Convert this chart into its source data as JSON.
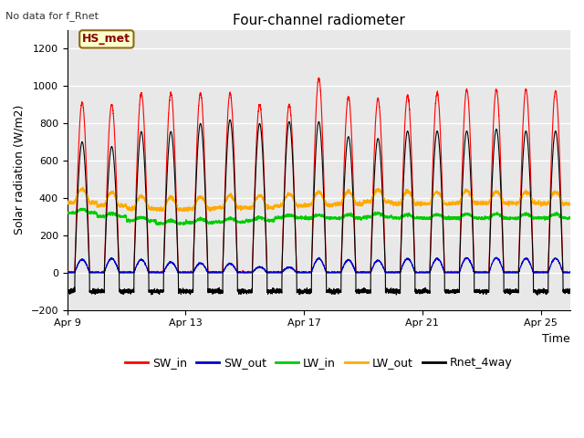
{
  "title": "Four-channel radiometer",
  "top_left_text": "No data for f_Rnet",
  "ylabel": "Solar radiation (W/m2)",
  "xlabel": "Time",
  "annotation_box": "HS_met",
  "ylim": [
    -200,
    1300
  ],
  "yticks": [
    -200,
    0,
    200,
    400,
    600,
    800,
    1000,
    1200
  ],
  "xtick_labels": [
    "Apr 9",
    "Apr 13",
    "Apr 17",
    "Apr 21",
    "Apr 25"
  ],
  "xtick_positions": [
    0,
    4,
    8,
    12,
    16
  ],
  "legend_entries": [
    "SW_in",
    "SW_out",
    "LW_in",
    "LW_out",
    "Rnet_4way"
  ],
  "legend_colors": [
    "#ff0000",
    "#0000cc",
    "#00cc00",
    "#ffaa00",
    "#000000"
  ],
  "fig_facecolor": "#ffffff",
  "plot_facecolor": "#e8e8e8",
  "grid_color": "#ffffff",
  "title_fontsize": 11,
  "tick_fontsize": 8,
  "label_fontsize": 9,
  "legend_fontsize": 9,
  "n_days": 17,
  "xlim": [
    0,
    17
  ],
  "SW_in_peak": [
    910,
    900,
    960,
    960,
    960,
    960,
    900,
    900,
    1040,
    940,
    930,
    950,
    960,
    980,
    980,
    980,
    970
  ],
  "SW_out_peak": [
    70,
    75,
    70,
    55,
    50,
    48,
    30,
    28,
    75,
    68,
    65,
    75,
    75,
    78,
    78,
    75,
    75
  ],
  "LW_in_base": [
    320,
    300,
    278,
    263,
    268,
    272,
    278,
    293,
    293,
    292,
    298,
    292,
    292,
    292,
    292,
    292,
    292
  ],
  "LW_in_peak": [
    350,
    328,
    308,
    288,
    298,
    303,
    308,
    318,
    318,
    322,
    332,
    322,
    322,
    328,
    328,
    328,
    328
  ],
  "LW_out_base": [
    375,
    358,
    342,
    338,
    342,
    348,
    348,
    358,
    362,
    368,
    378,
    368,
    368,
    372,
    372,
    372,
    368
  ],
  "LW_out_peak": [
    478,
    458,
    438,
    428,
    432,
    438,
    438,
    448,
    458,
    462,
    472,
    462,
    458,
    468,
    458,
    458,
    458
  ],
  "Rnet_peak": [
    700,
    675,
    755,
    755,
    798,
    818,
    798,
    808,
    808,
    728,
    718,
    758,
    758,
    758,
    768,
    758,
    758
  ],
  "Rnet_night": [
    -100,
    -100,
    -100,
    -100,
    -100,
    -100,
    -100,
    -100,
    -100,
    -100,
    -100,
    -100,
    -100,
    -100,
    -100,
    -100,
    -100
  ]
}
